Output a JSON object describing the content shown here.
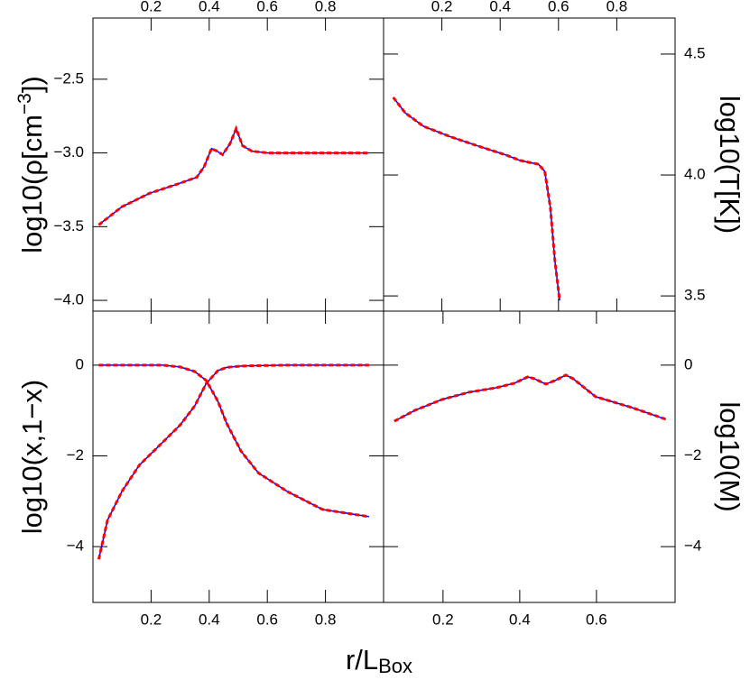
{
  "chart_data": [
    {
      "type": "line",
      "ylabel": [
        "log10(ρ[cm",
        "−3",
        "])"
      ],
      "ylabel_side": "left",
      "xtick_side": "top",
      "xlim": [
        0,
        1
      ],
      "ylim": [
        -4.073,
        -2.085
      ],
      "xticks": [
        0.2,
        0.4,
        0.6,
        0.8
      ],
      "yticks": [
        {
          "value": -4.0,
          "label": "−4.0"
        },
        {
          "value": -3.5,
          "label": "−3.5"
        },
        {
          "value": -3.0,
          "label": "−3.0"
        },
        {
          "value": -2.5,
          "label": "−2.5"
        }
      ],
      "x": [
        0.02,
        0.099,
        0.194,
        0.288,
        0.357,
        0.383,
        0.408,
        0.427,
        0.446,
        0.471,
        0.493,
        0.515,
        0.547,
        0.603,
        0.95
      ],
      "series": [
        {
          "color": "#0000ff",
          "values": [
            -3.488,
            -3.366,
            -3.274,
            -3.213,
            -3.165,
            -3.091,
            -2.97,
            -2.988,
            -3.012,
            -2.939,
            -2.835,
            -2.951,
            -2.988,
            -3.0,
            -3.0
          ]
        },
        {
          "color": "#ff0000",
          "dashed": true,
          "values": [
            -3.488,
            -3.366,
            -3.274,
            -3.213,
            -3.165,
            -3.091,
            -2.97,
            -2.988,
            -3.012,
            -2.939,
            -2.835,
            -2.951,
            -2.988,
            -3.0,
            -3.0
          ]
        }
      ]
    },
    {
      "type": "line",
      "ylabel": [
        "log10(T[K])"
      ],
      "ylabel_side": "right",
      "xtick_side": "top",
      "xlim": [
        0,
        1
      ],
      "ylim": [
        3.437,
        4.649
      ],
      "xticks": [
        0.2,
        0.4,
        0.6,
        0.8
      ],
      "yticks": [
        {
          "value": 3.5,
          "label": "3.5"
        },
        {
          "value": 4.0,
          "label": "4.0"
        },
        {
          "value": 4.5,
          "label": "4.5"
        }
      ],
      "x": [
        0.033,
        0.074,
        0.137,
        0.232,
        0.326,
        0.421,
        0.468,
        0.5,
        0.531,
        0.553,
        0.572,
        0.588,
        0.604
      ],
      "series": [
        {
          "color": "#0000ff",
          "values": [
            4.321,
            4.257,
            4.201,
            4.157,
            4.119,
            4.082,
            4.06,
            4.052,
            4.045,
            4.015,
            3.866,
            3.642,
            3.481
          ]
        },
        {
          "color": "#ff0000",
          "dashed": true,
          "values": [
            4.321,
            4.257,
            4.201,
            4.157,
            4.119,
            4.082,
            4.06,
            4.052,
            4.045,
            4.015,
            3.866,
            3.642,
            3.481
          ]
        }
      ]
    },
    {
      "type": "line",
      "ylabel": [
        "log10(x,1−x)"
      ],
      "ylabel_side": "left",
      "xtick_side": "bottom",
      "xlim": [
        0,
        1
      ],
      "ylim": [
        -5.23,
        1.19
      ],
      "xticks": [
        0.2,
        0.4,
        0.6,
        0.8
      ],
      "yticks": [
        {
          "value": -4,
          "label": "−4"
        },
        {
          "value": -2,
          "label": "−2"
        },
        0
      ],
      "x": [
        0.02,
        0.05,
        0.1,
        0.16,
        0.24,
        0.3,
        0.35,
        0.39,
        0.43,
        0.46,
        0.51,
        0.57,
        0.67,
        0.79,
        0.95
      ],
      "series": [
        {
          "color": "#0000ff",
          "values": [
            0,
            0,
            0,
            0,
            0,
            -0.04,
            -0.14,
            -0.34,
            -0.8,
            -1.28,
            -1.9,
            -2.38,
            -2.79,
            -3.18,
            -3.34
          ]
        },
        {
          "color": "#ff0000",
          "dashed": true,
          "values": [
            0,
            0,
            0,
            0,
            0,
            -0.04,
            -0.14,
            -0.34,
            -0.8,
            -1.28,
            -1.9,
            -2.38,
            -2.79,
            -3.18,
            -3.34
          ]
        },
        {
          "color": "#0000ff",
          "values": [
            -4.28,
            -3.42,
            -2.78,
            -2.2,
            -1.7,
            -1.32,
            -0.9,
            -0.4,
            -0.12,
            -0.05,
            -0.02,
            -0.01,
            0,
            0,
            0
          ]
        },
        {
          "color": "#ff0000",
          "dashed": true,
          "values": [
            -4.28,
            -3.42,
            -2.78,
            -2.2,
            -1.7,
            -1.32,
            -0.9,
            -0.4,
            -0.12,
            -0.05,
            -0.02,
            -0.01,
            0,
            0,
            0
          ]
        }
      ]
    },
    {
      "type": "line",
      "ylabel": [
        "log10(M)"
      ],
      "ylabel_side": "right",
      "xtick_side": "bottom",
      "xlim": [
        0.045,
        0.805
      ],
      "ylim": [
        -5.23,
        1.19
      ],
      "xticks": [
        0.2,
        0.4,
        0.6
      ],
      "yticks": [
        {
          "value": -4,
          "label": "−4"
        },
        {
          "value": -2,
          "label": "−2"
        },
        0
      ],
      "x": [
        0.073,
        0.127,
        0.198,
        0.268,
        0.339,
        0.386,
        0.421,
        0.438,
        0.468,
        0.492,
        0.52,
        0.539,
        0.598,
        0.692,
        0.781
      ],
      "series": [
        {
          "color": "#0000ff",
          "values": [
            -1.234,
            -0.995,
            -0.756,
            -0.597,
            -0.498,
            -0.398,
            -0.259,
            -0.299,
            -0.418,
            -0.338,
            -0.219,
            -0.299,
            -0.697,
            -0.935,
            -1.194
          ]
        },
        {
          "color": "#ff0000",
          "dashed": true,
          "values": [
            -1.234,
            -0.995,
            -0.756,
            -0.597,
            -0.498,
            -0.398,
            -0.259,
            -0.299,
            -0.418,
            -0.338,
            -0.219,
            -0.299,
            -0.697,
            -0.935,
            -1.194
          ]
        }
      ]
    }
  ],
  "xlabel": [
    "r/L",
    "Box"
  ]
}
